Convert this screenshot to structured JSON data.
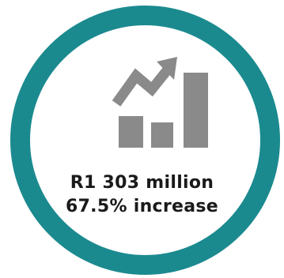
{
  "stat": {
    "amount": "R1 303 million",
    "change": "67.5% increase"
  },
  "icon": "bar-chart-growth-icon",
  "colors": {
    "ring": "#1b8a8f",
    "icon": "#8a8a8a",
    "text": "#1a1a1a",
    "background": "#ffffff"
  }
}
